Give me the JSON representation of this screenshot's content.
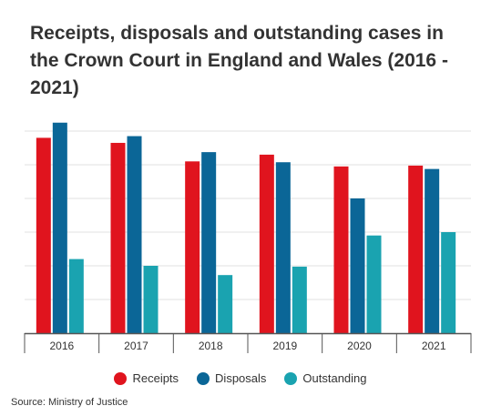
{
  "title": "Receipts, disposals and outstanding cases in the Crown Court in England and Wales (2016 - 2021)",
  "source": "Source: Ministry of Justice",
  "colors": {
    "receipts": "#e0141e",
    "disposals": "#0b6697",
    "outstanding": "#1aa3b0",
    "grid": "#e2e2e2",
    "axis": "#555555"
  },
  "chart_data": {
    "type": "bar",
    "title": "Receipts, disposals and outstanding cases in the Crown Court in England and Wales (2016 - 2021)",
    "categories": [
      "2016",
      "2017",
      "2018",
      "2019",
      "2020",
      "2021"
    ],
    "ylim": [
      0,
      120000
    ],
    "yticks_visible": false,
    "grid": true,
    "legend": "bottom",
    "series": [
      {
        "name": "Receipts",
        "color": "#e0141e",
        "values": [
          116000,
          113000,
          102000,
          106000,
          99000,
          99500
        ]
      },
      {
        "name": "Disposals",
        "color": "#0b6697",
        "values": [
          125000,
          117000,
          107500,
          101500,
          80000,
          97500
        ]
      },
      {
        "name": "Outstanding",
        "color": "#1aa3b0",
        "values": [
          44000,
          40000,
          34500,
          39500,
          58000,
          60000
        ]
      }
    ]
  }
}
